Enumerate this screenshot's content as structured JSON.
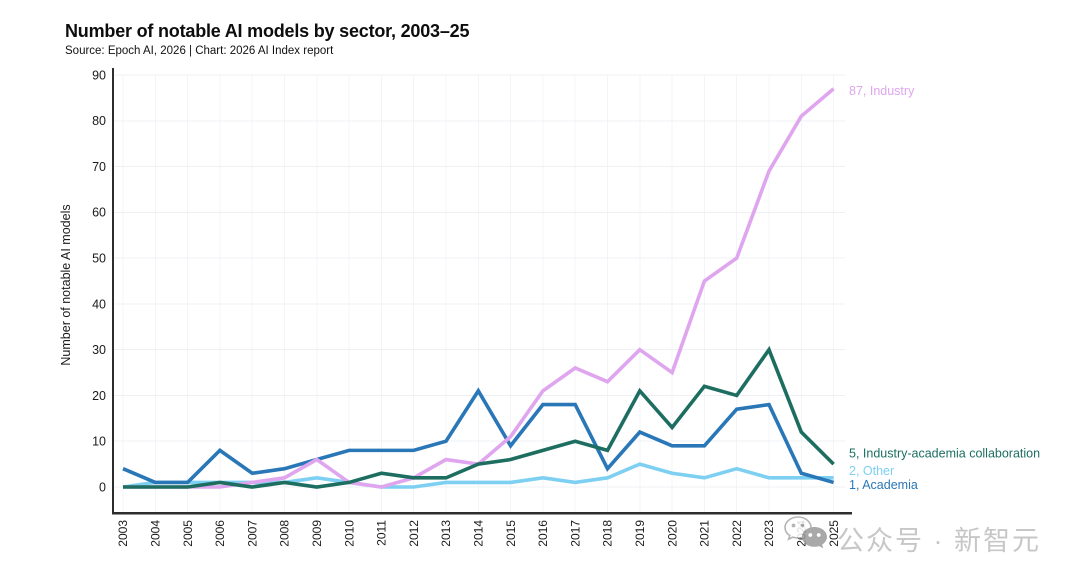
{
  "header": {
    "title": "Number of notable AI models by sector, 2003–25",
    "subtitle": "Source: Epoch AI, 2026 | Chart: 2026 AI Index report"
  },
  "chart_data": {
    "type": "line",
    "title": "Number of notable AI models by sector, 2003–25",
    "xlabel": "",
    "ylabel": "Number of notable AI models",
    "ylim": [
      0,
      90
    ],
    "ytick_step": 10,
    "grid": true,
    "legend_position": "line-end-labels",
    "x": [
      2003,
      2004,
      2005,
      2006,
      2007,
      2008,
      2009,
      2010,
      2011,
      2012,
      2013,
      2014,
      2015,
      2016,
      2017,
      2018,
      2019,
      2020,
      2021,
      2022,
      2023,
      2024,
      2025
    ],
    "series": [
      {
        "name": "Other",
        "color": "#7dd0f2",
        "end_label": "2, Other",
        "values": [
          0,
          1,
          1,
          1,
          1,
          1,
          2,
          1,
          0,
          0,
          1,
          1,
          1,
          2,
          1,
          2,
          5,
          3,
          2,
          4,
          2,
          2,
          2
        ]
      },
      {
        "name": "Academia",
        "color": "#2a77b8",
        "end_label": "1, Academia",
        "values": [
          4,
          1,
          1,
          8,
          3,
          4,
          6,
          8,
          8,
          8,
          10,
          21,
          9,
          18,
          18,
          4,
          12,
          9,
          9,
          17,
          18,
          3,
          1
        ]
      },
      {
        "name": "Industry",
        "color": "#dfa5ee",
        "end_label": "87, Industry",
        "values": [
          0,
          0,
          0,
          0,
          1,
          2,
          6,
          1,
          0,
          2,
          6,
          5,
          11,
          21,
          26,
          23,
          30,
          25,
          45,
          50,
          69,
          81,
          87
        ]
      },
      {
        "name": "Industry-academia collaboration",
        "color": "#1d6e61",
        "end_label": "5, Industry-academia collaboration",
        "values": [
          0,
          0,
          0,
          1,
          0,
          1,
          0,
          1,
          3,
          2,
          2,
          5,
          6,
          8,
          10,
          8,
          21,
          13,
          22,
          20,
          30,
          12,
          5
        ]
      }
    ]
  },
  "watermark": {
    "icon": "wechat-icon",
    "text": "公众号 · 新智元"
  }
}
